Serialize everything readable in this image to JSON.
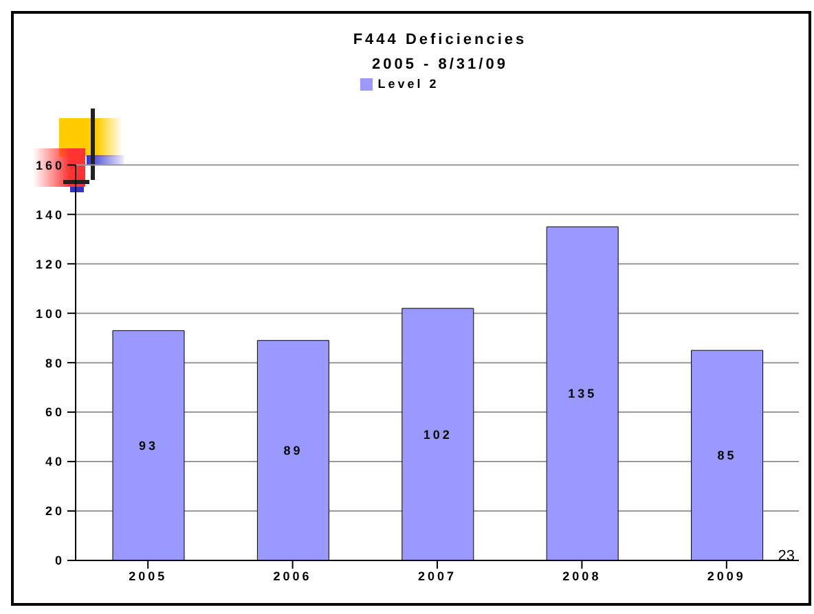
{
  "chart_data": {
    "type": "bar",
    "title": "F444 Deficiencies",
    "subtitle": "2005 - 8/31/09",
    "categories": [
      "2005",
      "2006",
      "2007",
      "2008",
      "2009"
    ],
    "series": [
      {
        "name": "Level 2",
        "color": "#9999ff",
        "values": [
          93,
          89,
          102,
          135,
          85
        ]
      }
    ],
    "ylim": [
      0,
      160
    ],
    "yticks": [
      0,
      20,
      40,
      60,
      80,
      100,
      120,
      140,
      160
    ],
    "grid": "y",
    "legend": "top",
    "data_labels": true,
    "annotations": [
      "23"
    ]
  }
}
